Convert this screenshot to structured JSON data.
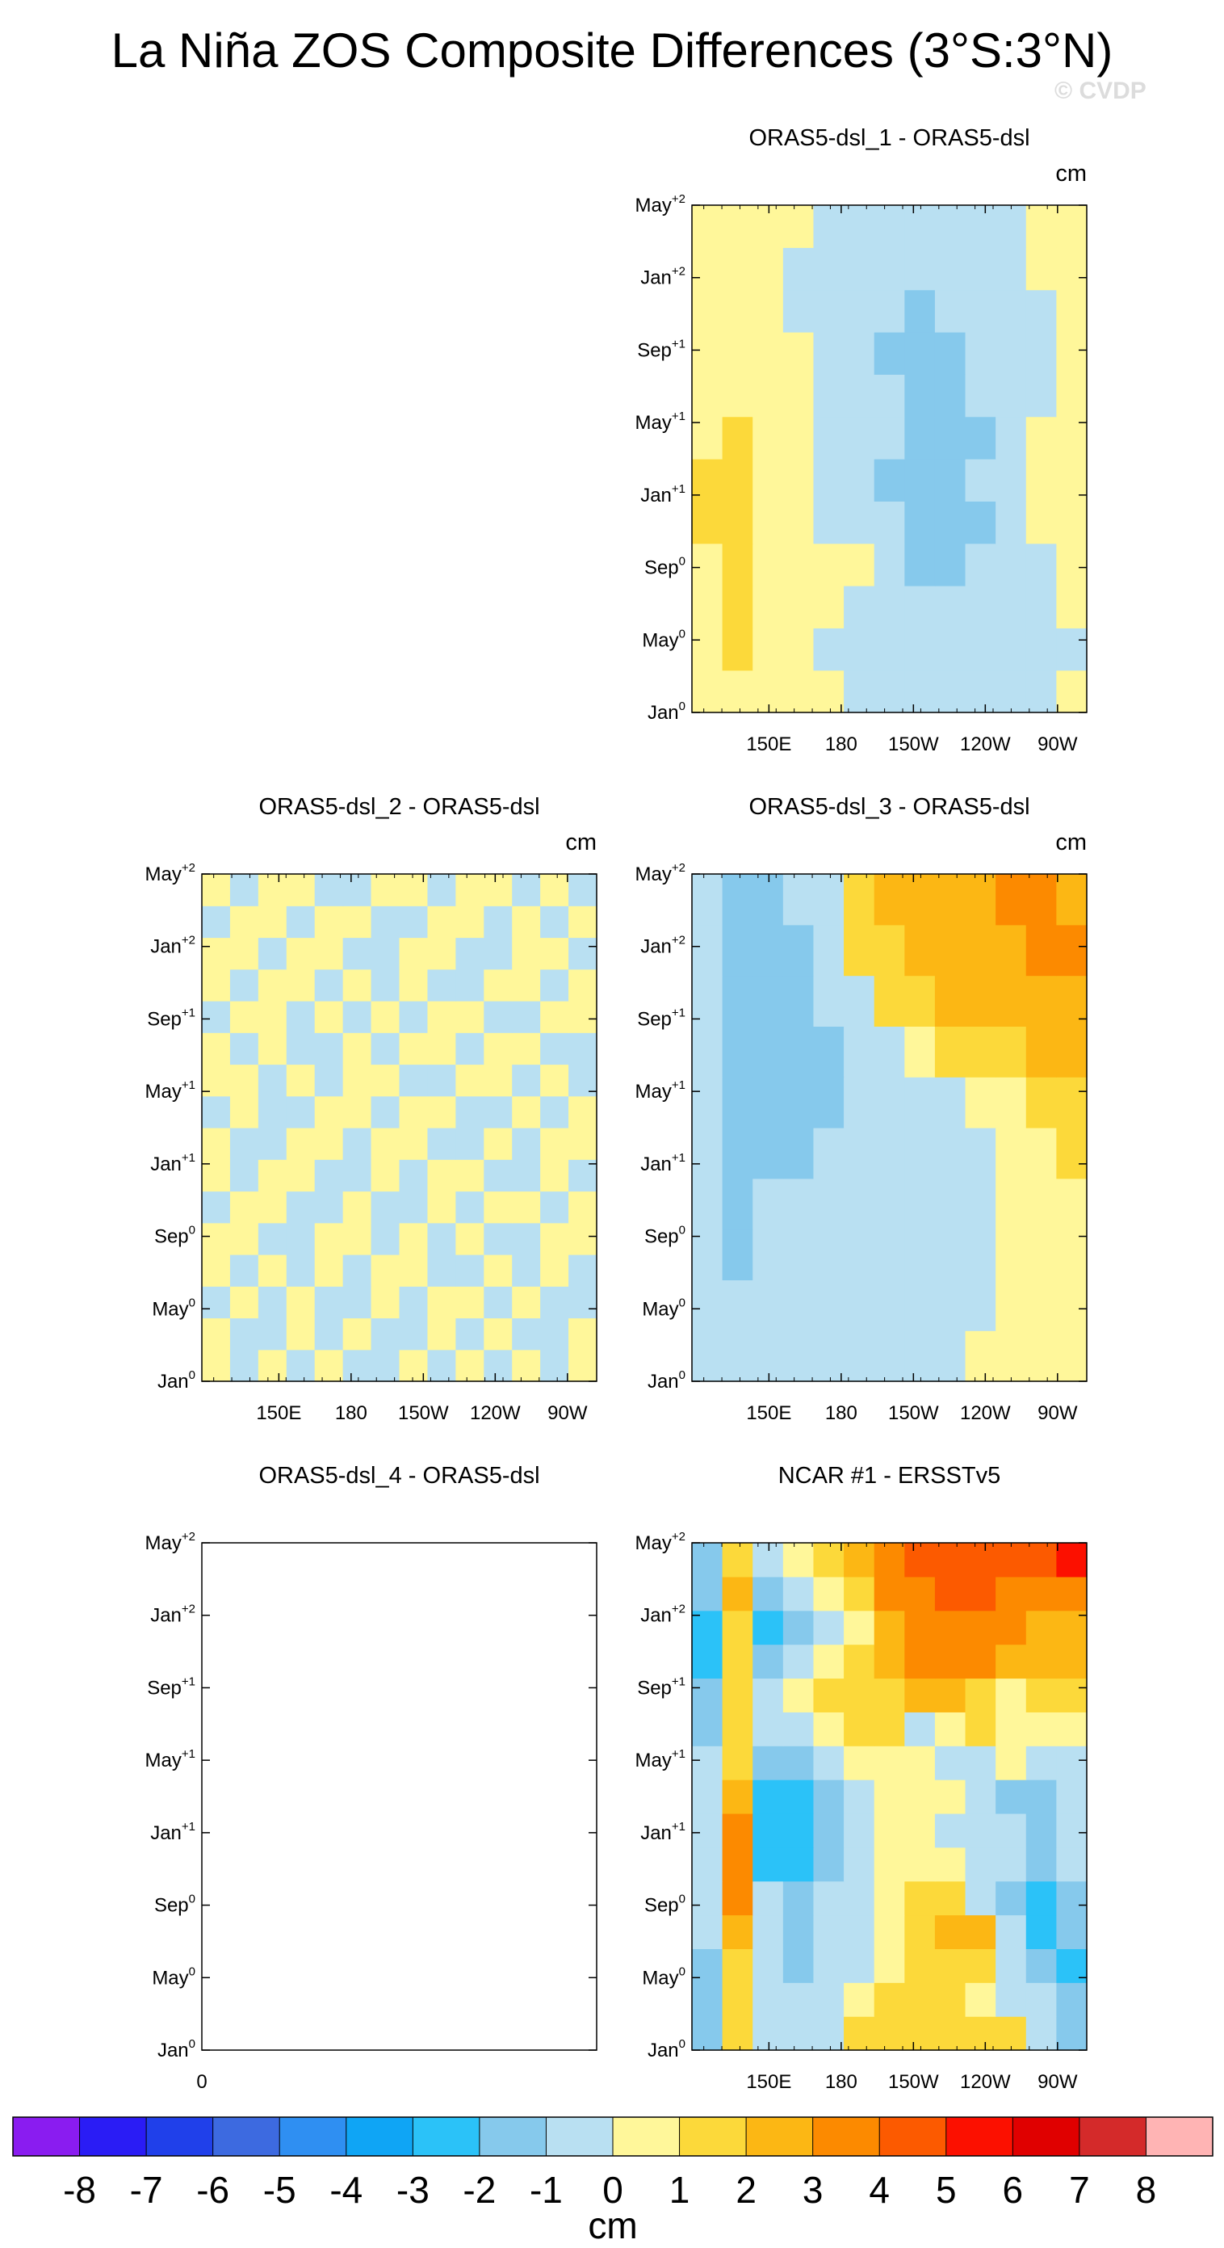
{
  "page": {
    "title": "La Niña ZOS Composite Differences (3°S:3°N)",
    "watermark": "© CVDP"
  },
  "chart_data": [
    {
      "type": "heatmap",
      "title": "ORAS5-dsl_1 - ORAS5-dsl",
      "units": "cm",
      "x_ticks": [
        "150E",
        "180",
        "150W",
        "120W",
        "90W"
      ],
      "y_ticks": [
        {
          "base": "Jan",
          "sup": "0"
        },
        {
          "base": "May",
          "sup": "0"
        },
        {
          "base": "Sep",
          "sup": "0"
        },
        {
          "base": "Jan",
          "sup": "+1"
        },
        {
          "base": "May",
          "sup": "+1"
        },
        {
          "base": "Sep",
          "sup": "+1"
        },
        {
          "base": "Jan",
          "sup": "+2"
        },
        {
          "base": "May",
          "sup": "+2"
        }
      ],
      "values": [
        [
          0,
          0.5,
          0.5,
          0,
          0,
          -1,
          -1,
          -1,
          -1,
          -1,
          -1,
          -1,
          0
        ],
        [
          0.5,
          1,
          0.5,
          0,
          -1,
          -1,
          -1,
          -1,
          -1,
          -1,
          -1,
          -1,
          -1
        ],
        [
          0.5,
          1,
          0.5,
          0,
          0,
          -1,
          -1,
          -1,
          -1,
          -1,
          -1,
          -1,
          0
        ],
        [
          0.5,
          1,
          0.5,
          0,
          0,
          0,
          -1,
          -2,
          -2,
          -1,
          -1,
          -1,
          0
        ],
        [
          1,
          1,
          0.5,
          0,
          -1,
          -1,
          -1,
          -2,
          -2,
          -2,
          -1,
          0.5,
          0.5
        ],
        [
          1,
          1,
          0.5,
          0,
          -1,
          -1,
          -2,
          -2,
          -2,
          -1,
          -1,
          0.5,
          0.5
        ],
        [
          0.5,
          1,
          0.5,
          0,
          -1,
          -1,
          -1,
          -2,
          -2,
          -2,
          -1,
          0.5,
          0.5
        ],
        [
          0.5,
          0.5,
          0,
          0,
          -1,
          -1,
          -1,
          -2,
          -2,
          -1,
          -1,
          -1,
          0
        ],
        [
          0,
          0.5,
          0,
          0,
          -1,
          -1,
          -2,
          -2,
          -2,
          -1,
          -1,
          -1,
          0
        ],
        [
          0,
          0.5,
          0,
          -1,
          -1,
          -1,
          -1,
          -2,
          -1,
          -1,
          -1,
          -1,
          0
        ],
        [
          0,
          0.5,
          0,
          -1,
          -1,
          -1,
          -1,
          -1,
          -1,
          -1,
          -1,
          0,
          0
        ],
        [
          0,
          0.5,
          0,
          0,
          -1,
          -1,
          -1,
          -1,
          -1,
          -1,
          -1,
          0,
          0
        ]
      ]
    },
    {
      "type": "heatmap",
      "title": "ORAS5-dsl_2 - ORAS5-dsl",
      "units": "cm",
      "x_ticks": [
        "150E",
        "180",
        "150W",
        "120W",
        "90W"
      ],
      "y_ticks": [
        {
          "base": "Jan",
          "sup": "0"
        },
        {
          "base": "May",
          "sup": "0"
        },
        {
          "base": "Sep",
          "sup": "0"
        },
        {
          "base": "Jan",
          "sup": "+1"
        },
        {
          "base": "May",
          "sup": "+1"
        },
        {
          "base": "Sep",
          "sup": "+1"
        },
        {
          "base": "Jan",
          "sup": "+2"
        },
        {
          "base": "May",
          "sup": "+2"
        }
      ],
      "values": [
        [
          0.5,
          -0.5,
          0.5,
          -0.5,
          0.5,
          -0.5,
          -0.5,
          0.5,
          -0.5,
          0.5,
          -0.5,
          0.5,
          -0.5,
          0.5
        ],
        [
          0.5,
          -0.5,
          -0.5,
          0.5,
          -0.5,
          0.5,
          -0.5,
          -0.5,
          0.5,
          -0.5,
          0.5,
          -0.5,
          -0.5,
          0.5
        ],
        [
          -0.5,
          0.5,
          -0.5,
          0.5,
          -0.5,
          -0.5,
          0.5,
          -0.5,
          0.5,
          0.5,
          -0.5,
          0.5,
          -0.5,
          -0.5
        ],
        [
          0.5,
          -0.5,
          0.5,
          -0.5,
          0.5,
          -0.5,
          0.5,
          0.5,
          -0.5,
          -0.5,
          0.5,
          -0.5,
          0.5,
          -0.5
        ],
        [
          0.5,
          0.5,
          -0.5,
          -0.5,
          0.5,
          0.5,
          -0.5,
          0.5,
          -0.5,
          0.5,
          -0.5,
          -0.5,
          0.5,
          0.5
        ],
        [
          -0.5,
          0.5,
          0.5,
          -0.5,
          -0.5,
          0.5,
          -0.5,
          -0.5,
          0.5,
          -0.5,
          0.5,
          0.5,
          -0.5,
          0.5
        ],
        [
          0.5,
          -0.5,
          0.5,
          0.5,
          -0.5,
          -0.5,
          0.5,
          -0.5,
          0.5,
          0.5,
          -0.5,
          -0.5,
          0.5,
          -0.5
        ],
        [
          0.5,
          -0.5,
          -0.5,
          0.5,
          0.5,
          -0.5,
          0.5,
          0.5,
          -0.5,
          -0.5,
          0.5,
          -0.5,
          0.5,
          0.5
        ],
        [
          -0.5,
          0.5,
          -0.5,
          -0.5,
          0.5,
          0.5,
          -0.5,
          0.5,
          0.5,
          -0.5,
          -0.5,
          0.5,
          -0.5,
          0.5
        ],
        [
          0.5,
          0.5,
          -0.5,
          0.5,
          -0.5,
          0.5,
          0.5,
          -0.5,
          -0.5,
          0.5,
          0.5,
          -0.5,
          0.5,
          -0.5
        ],
        [
          0.5,
          -0.5,
          0.5,
          -0.5,
          -0.5,
          0.5,
          -0.5,
          0.5,
          0.5,
          -0.5,
          0.5,
          0.5,
          -0.5,
          -0.5
        ],
        [
          -0.5,
          0.5,
          0.5,
          -0.5,
          0.5,
          -0.5,
          0.5,
          -0.5,
          0.5,
          0.5,
          -0.5,
          -0.5,
          0.5,
          0.5
        ],
        [
          0.5,
          -0.5,
          0.5,
          0.5,
          -0.5,
          0.5,
          -0.5,
          0.5,
          -0.5,
          -0.5,
          0.5,
          0.5,
          -0.5,
          0.5
        ],
        [
          0.5,
          0.5,
          -0.5,
          0.5,
          0.5,
          -0.5,
          -0.5,
          0.5,
          0.5,
          -0.5,
          -0.5,
          0.5,
          0.5,
          -0.5
        ],
        [
          -0.5,
          0.5,
          0.5,
          -0.5,
          0.5,
          0.5,
          -0.5,
          -0.5,
          0.5,
          0.5,
          -0.5,
          0.5,
          -0.5,
          0.5
        ],
        [
          0.5,
          -0.5,
          0.5,
          0.5,
          -0.5,
          -0.5,
          0.5,
          0.5,
          -0.5,
          0.5,
          0.5,
          -0.5,
          0.5,
          -0.5
        ]
      ]
    },
    {
      "type": "heatmap",
      "title": "ORAS5-dsl_3 - ORAS5-dsl",
      "units": "cm",
      "x_ticks": [
        "150E",
        "180",
        "150W",
        "120W",
        "90W"
      ],
      "y_ticks": [
        {
          "base": "Jan",
          "sup": "0"
        },
        {
          "base": "May",
          "sup": "0"
        },
        {
          "base": "Sep",
          "sup": "0"
        },
        {
          "base": "Jan",
          "sup": "+1"
        },
        {
          "base": "May",
          "sup": "+1"
        },
        {
          "base": "Sep",
          "sup": "+1"
        },
        {
          "base": "Jan",
          "sup": "+2"
        },
        {
          "base": "May",
          "sup": "+2"
        }
      ],
      "values": [
        [
          -1,
          -1,
          -1,
          -1,
          -1,
          -1,
          -1,
          -1,
          -1,
          0.5,
          0.5,
          0.5,
          0.5
        ],
        [
          -1,
          -1,
          -1,
          -1,
          -1,
          -1,
          -1,
          -1,
          -1,
          -1,
          0.5,
          0.5,
          0.5
        ],
        [
          -1,
          -2,
          -1,
          -1,
          -1,
          -1,
          -1,
          -1,
          -1,
          -1,
          0.5,
          0.5,
          0.5
        ],
        [
          -1,
          -2,
          -1,
          -1,
          -1,
          -1,
          -1,
          -1,
          -1,
          -1,
          0.5,
          0.5,
          0.5
        ],
        [
          -1,
          -2,
          -2,
          -2,
          -1,
          -1,
          -1,
          -1,
          -1,
          -1,
          0.5,
          0.5,
          1
        ],
        [
          -1,
          -2,
          -2,
          -2,
          -2,
          -1,
          -1,
          -1,
          -1,
          0.5,
          0.5,
          1,
          1
        ],
        [
          -1,
          -2,
          -2,
          -2,
          -2,
          -1,
          -1,
          0.5,
          1,
          1,
          1,
          2,
          2
        ],
        [
          -1,
          -2,
          -2,
          -2,
          -1,
          -1,
          1,
          1,
          2,
          2,
          2,
          2,
          2
        ],
        [
          -1,
          -2,
          -2,
          -2,
          -1,
          1,
          1,
          2,
          2,
          2,
          2,
          3,
          3
        ],
        [
          -1,
          -2,
          -2,
          -1,
          -1,
          1,
          2,
          2,
          2,
          2,
          3,
          3,
          2
        ]
      ]
    },
    {
      "type": "heatmap",
      "title": "ORAS5-dsl_4 - ORAS5-dsl",
      "units": "",
      "x_ticks": [
        "0"
      ],
      "y_ticks": [
        {
          "base": "Jan",
          "sup": "0"
        },
        {
          "base": "May",
          "sup": "0"
        },
        {
          "base": "Sep",
          "sup": "0"
        },
        {
          "base": "Jan",
          "sup": "+1"
        },
        {
          "base": "May",
          "sup": "+1"
        },
        {
          "base": "Sep",
          "sup": "+1"
        },
        {
          "base": "Jan",
          "sup": "+2"
        },
        {
          "base": "May",
          "sup": "+2"
        }
      ],
      "values": []
    },
    {
      "type": "heatmap",
      "title": "NCAR #1 - ERSSTv5",
      "units": "",
      "x_ticks": [
        "150E",
        "180",
        "150W",
        "120W",
        "90W"
      ],
      "y_ticks": [
        {
          "base": "Jan",
          "sup": "0"
        },
        {
          "base": "May",
          "sup": "0"
        },
        {
          "base": "Sep",
          "sup": "0"
        },
        {
          "base": "Jan",
          "sup": "+1"
        },
        {
          "base": "May",
          "sup": "+1"
        },
        {
          "base": "Sep",
          "sup": "+1"
        },
        {
          "base": "Jan",
          "sup": "+2"
        },
        {
          "base": "May",
          "sup": "+2"
        }
      ],
      "values": [
        [
          -2,
          1,
          -1,
          -1,
          -1,
          1,
          1,
          1,
          1,
          1,
          1,
          -1,
          -2
        ],
        [
          -2,
          1,
          -1,
          -1,
          -1,
          0.5,
          1,
          1,
          1,
          0.5,
          -1,
          -1,
          -2
        ],
        [
          -2,
          1,
          -1,
          -2,
          -1,
          -1,
          0.5,
          1,
          1,
          1,
          -1,
          -2,
          -3
        ],
        [
          -1,
          2,
          -1,
          -2,
          -1,
          -1,
          0.5,
          1,
          2,
          2,
          -1,
          -3,
          -2
        ],
        [
          -1,
          3,
          -1,
          -2,
          -1,
          -1,
          0.5,
          1,
          1,
          -1,
          -2,
          -3,
          -2
        ],
        [
          -1,
          3,
          -3,
          -3,
          -2,
          -1,
          0.5,
          0.5,
          0.5,
          -1,
          -1,
          -2,
          -1
        ],
        [
          -1,
          3,
          -3,
          -3,
          -2,
          -1,
          0.5,
          0.5,
          -1,
          -1,
          -1,
          -2,
          -1
        ],
        [
          -1,
          2,
          -3,
          -3,
          -2,
          -1,
          0.5,
          0.5,
          0.5,
          -1,
          -2,
          -2,
          -1
        ],
        [
          -1,
          1,
          -2,
          -2,
          -1,
          0.5,
          0.5,
          0.5,
          -1,
          -1,
          0.5,
          -1,
          -1
        ],
        [
          -2,
          1,
          -1,
          -1,
          0.5,
          1,
          1,
          -1,
          0.5,
          1,
          0.5,
          0.5,
          0.5
        ],
        [
          -2,
          1,
          -1,
          0.5,
          1,
          1,
          1,
          2,
          2,
          1,
          0.5,
          1,
          1
        ],
        [
          -3,
          1,
          -2,
          -1,
          0.5,
          1,
          2,
          3,
          3,
          3,
          2,
          2,
          2
        ],
        [
          -3,
          1,
          -3,
          -2,
          -1,
          0.5,
          2,
          3,
          3,
          3,
          3,
          2,
          2
        ],
        [
          -2,
          2,
          -2,
          -1,
          0.5,
          1,
          3,
          3,
          4,
          4,
          3,
          3,
          3
        ],
        [
          -2,
          1,
          -1,
          0.5,
          1,
          2,
          3,
          4,
          4,
          4,
          4,
          4,
          5
        ]
      ]
    },
    {
      "type": "colorbar",
      "label": "cm",
      "tick_labels": [
        "-8",
        "-7",
        "-6",
        "-5",
        "-4",
        "-3",
        "-2",
        "-1",
        "0",
        "1",
        "2",
        "3",
        "4",
        "5",
        "6",
        "7",
        "8"
      ],
      "bounds": [
        -8,
        -7,
        -6,
        -5,
        -4,
        -3,
        -2,
        -1,
        0,
        1,
        2,
        3,
        4,
        5,
        6,
        7,
        8
      ],
      "colors": [
        "#8a1cf0",
        "#2a1cf5",
        "#2040ea",
        "#3d6ae0",
        "#2f8ff2",
        "#0fa5f5",
        "#2bc2f8",
        "#86c9ec",
        "#b9e0f2",
        "#fff79a",
        "#fcd93a",
        "#fcb714",
        "#fc8a00",
        "#fc5a00",
        "#fc1000",
        "#e00000",
        "#d42a2a",
        "#ffb4b4"
      ]
    }
  ]
}
